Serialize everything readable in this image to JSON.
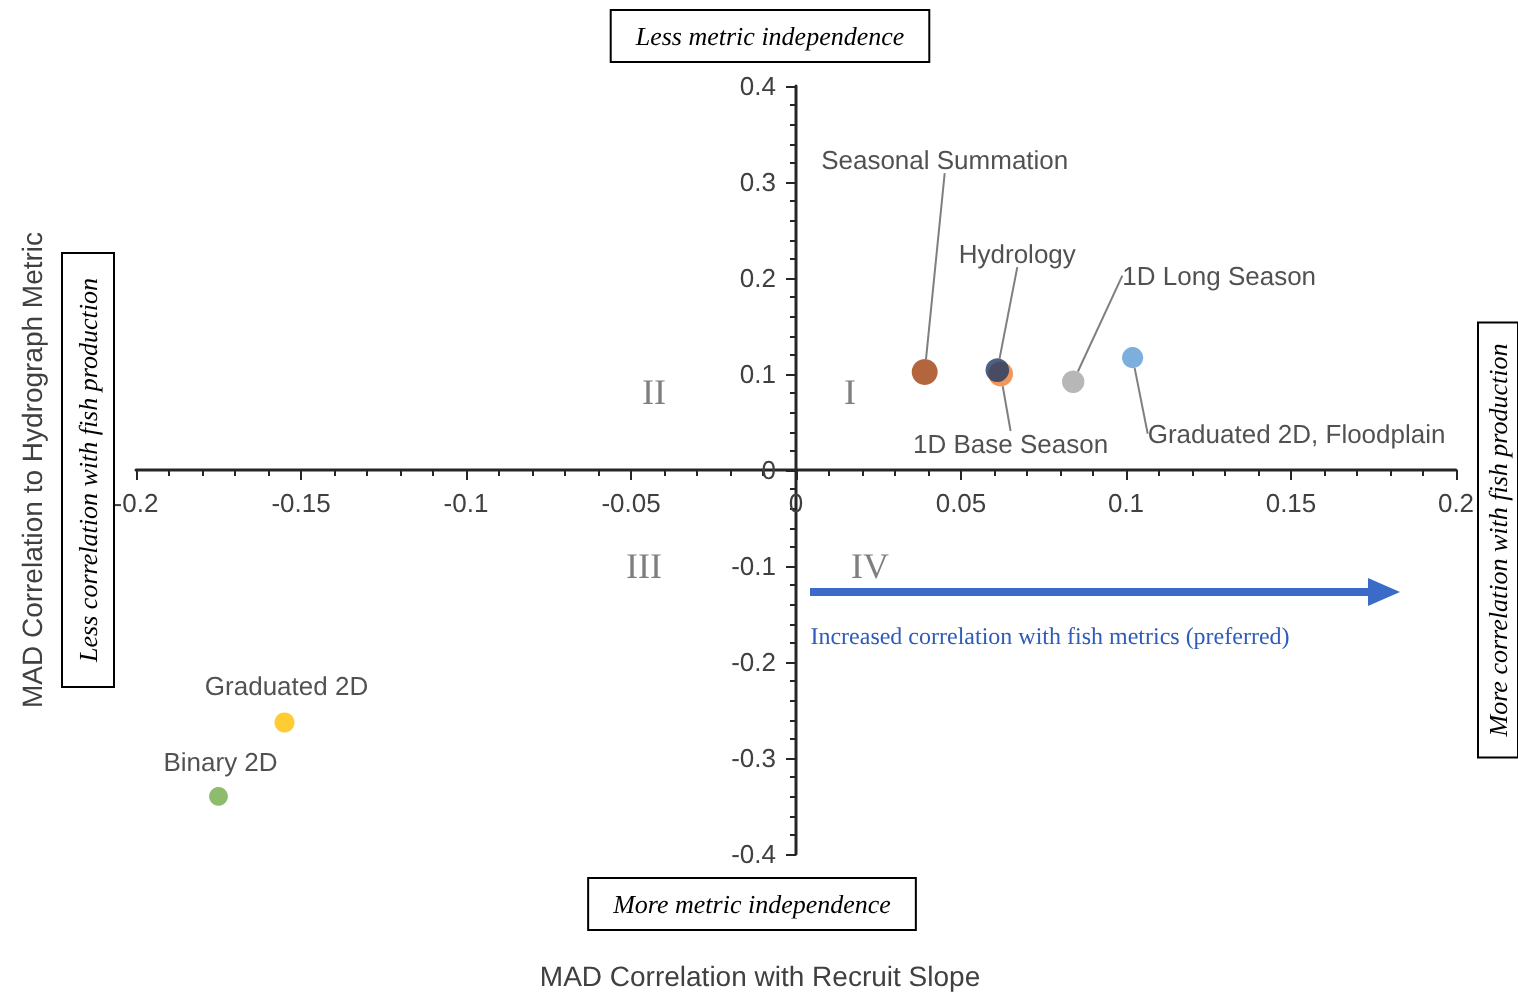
{
  "chart_data": {
    "type": "scatter",
    "xlabel": "MAD Correlation with Recruit Slope",
    "ylabel": "MAD Correlation to Hydrograph Metric",
    "xlim": [
      -0.2,
      0.2
    ],
    "xticks": [
      -0.2,
      -0.15,
      -0.1,
      -0.05,
      0,
      0.05,
      0.1,
      0.15,
      0.2
    ],
    "ylim": [
      -0.4,
      0.4
    ],
    "yticks": [
      -0.4,
      -0.3,
      -0.2,
      -0.1,
      0,
      0.1,
      0.2,
      0.3,
      0.4
    ],
    "grid": false,
    "legend": false,
    "marker": "circle",
    "series": [
      {
        "name": "Seasonal Summation",
        "color": "#a0400c",
        "x": [
          0.039
        ],
        "values": [
          0.102
        ]
      },
      {
        "name": "1D Base Season",
        "color": "#ed7d31",
        "x": [
          0.062
        ],
        "values": [
          0.1
        ]
      },
      {
        "name": "Hydrology",
        "color": "#1f3864",
        "x": [
          0.061
        ],
        "values": [
          0.104
        ]
      },
      {
        "name": "1D Long Season",
        "color": "#a5a5a5",
        "x": [
          0.084
        ],
        "values": [
          0.092
        ]
      },
      {
        "name": "Graduated 2D, Floodplain",
        "color": "#5b9bd5",
        "x": [
          0.102
        ],
        "values": [
          0.117
        ]
      },
      {
        "name": "Graduated 2D",
        "color": "#ffc000",
        "x": [
          -0.155
        ],
        "values": [
          -0.263
        ]
      },
      {
        "name": "Binary 2D",
        "color": "#70ad47",
        "x": [
          -0.175
        ],
        "values": [
          -0.34
        ]
      }
    ],
    "annotations": [
      "Less metric independence",
      "More metric independence",
      "Less correlation with fish production",
      "More correlation with fish production",
      "I",
      "II",
      "III",
      "IV",
      "Increased correlation with fish metrics (preferred)"
    ]
  }
}
